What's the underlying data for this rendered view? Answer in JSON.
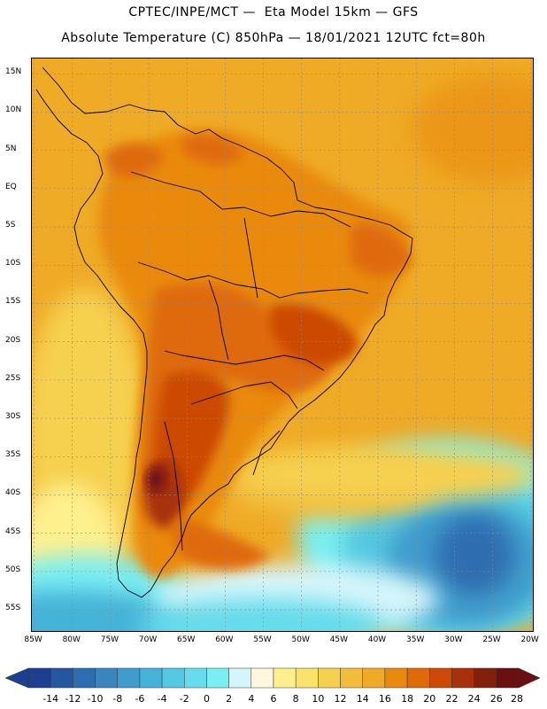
{
  "header": {
    "title_line1": "CPTEC/INPE/MCT —  Eta Model 15km — GFS",
    "title_line2": "Absolute Temperature (C) 850hPa — 18/01/2021 12UTC fct=80h"
  },
  "map": {
    "lat_labels": [
      "15N",
      "10N",
      "5N",
      "EQ",
      "5S",
      "10S",
      "15S",
      "20S",
      "25S",
      "30S",
      "35S",
      "40S",
      "45S",
      "50S",
      "55S"
    ],
    "lat_values": [
      15,
      10,
      5,
      0,
      -5,
      -10,
      -15,
      -20,
      -25,
      -30,
      -35,
      -40,
      -45,
      -50,
      -55
    ],
    "lon_labels": [
      "85W",
      "80W",
      "75W",
      "70W",
      "65W",
      "60W",
      "55W",
      "50W",
      "45W",
      "40W",
      "35W",
      "30W",
      "25W",
      "20W"
    ],
    "lon_values": [
      -85,
      -80,
      -75,
      -70,
      -65,
      -60,
      -55,
      -50,
      -45,
      -40,
      -35,
      -30,
      -25,
      -20
    ],
    "extent": {
      "lon_min": -85.3,
      "lon_max": -19.5,
      "lat_min": -58,
      "lat_max": 17
    }
  },
  "colorbar": {
    "labels": [
      "-14",
      "-12",
      "-10",
      "-8",
      "-6",
      "-4",
      "-2",
      "0",
      "2",
      "4",
      "6",
      "8",
      "10",
      "12",
      "14",
      "16",
      "18",
      "20",
      "22",
      "24",
      "26",
      "28"
    ],
    "colors": [
      "#1d3f8f",
      "#2457a0",
      "#2e6eb0",
      "#3b85bf",
      "#3f9ccc",
      "#45b3d8",
      "#55c8e2",
      "#66dcec",
      "#7aeef2",
      "#d4f5fb",
      "#fff6de",
      "#fff08f",
      "#fbe26a",
      "#f6d04f",
      "#f2bd3b",
      "#efaa26",
      "#e98a10",
      "#df6a08",
      "#cc4a06",
      "#a8300a",
      "#83200c",
      "#6a0f12"
    ],
    "low_end_color": "#1d3f8f",
    "high_end_color": "#6a0f12"
  }
}
